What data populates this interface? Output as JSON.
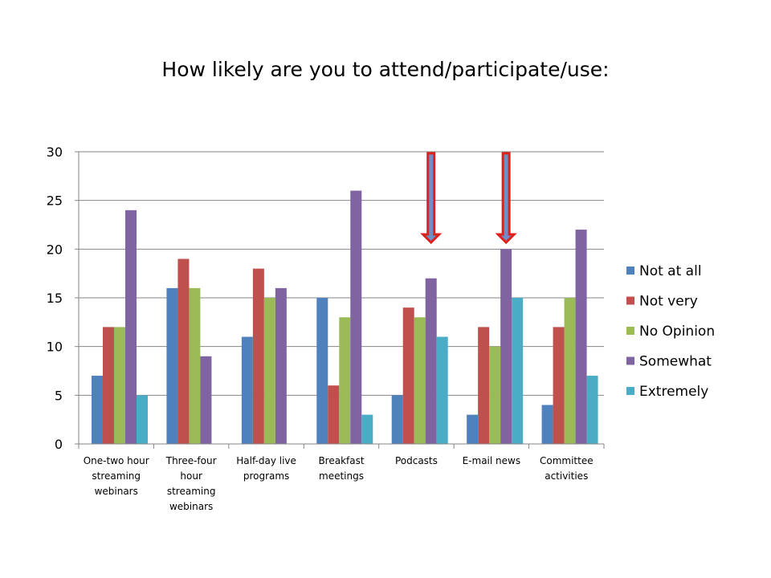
{
  "chart_data": {
    "type": "bar",
    "title": "How likely are you to attend/participate/use:",
    "xlabel": "",
    "ylabel": "",
    "ylim": [
      0,
      30
    ],
    "yticks": [
      0,
      5,
      10,
      15,
      20,
      25,
      30
    ],
    "grid": true,
    "legend_position": "right",
    "categories": [
      [
        "One-two hour",
        "streaming",
        "webinars"
      ],
      [
        "Three-four",
        "hour",
        "streaming",
        "webinars"
      ],
      [
        "Half-day live",
        "programs"
      ],
      [
        "Breakfast",
        "meetings"
      ],
      [
        "Podcasts"
      ],
      [
        "E-mail news"
      ],
      [
        "Committee",
        "activities"
      ]
    ],
    "series": [
      {
        "name": "Not at all",
        "color": "#4F81BD",
        "values": [
          7,
          16,
          11,
          15,
          5,
          3,
          4
        ]
      },
      {
        "name": "Not very",
        "color": "#C0504D",
        "values": [
          12,
          19,
          18,
          6,
          14,
          12,
          12
        ]
      },
      {
        "name": "No Opinion",
        "color": "#9BBB59",
        "values": [
          12,
          16,
          15,
          13,
          13,
          10,
          15
        ]
      },
      {
        "name": "Somewhat",
        "color": "#8064A2",
        "values": [
          24,
          9,
          16,
          26,
          17,
          20,
          22
        ]
      },
      {
        "name": "Extremely",
        "color": "#4BACC6",
        "values": [
          5,
          0,
          0,
          3,
          11,
          15,
          7
        ]
      }
    ],
    "annotations": [
      {
        "type": "down-arrow",
        "category_index": 4,
        "color": "#E0201B",
        "fill": "#6E8FC9"
      },
      {
        "type": "down-arrow",
        "category_index": 5,
        "color": "#E0201B",
        "fill": "#6E8FC9"
      }
    ]
  }
}
